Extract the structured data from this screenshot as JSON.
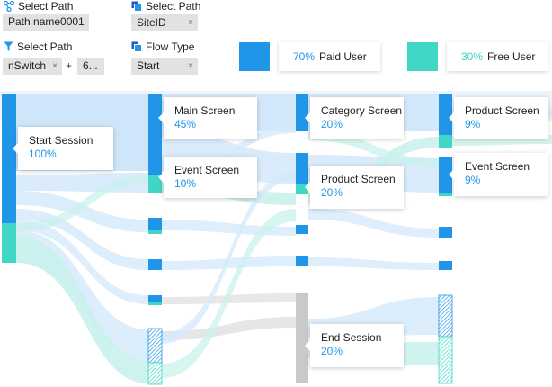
{
  "filters": {
    "path1": {
      "label": "Select Path",
      "value": "Path name0001"
    },
    "path2": {
      "label": "Select Path",
      "value": "SiteID"
    },
    "path3": {
      "label": "Select Path",
      "chips": [
        "nSwitch",
        "6..."
      ],
      "plus": "+"
    },
    "flow": {
      "label": "Flow Type",
      "value": "Start"
    },
    "remove_glyph": "×"
  },
  "legend": {
    "paid": {
      "pct": "70%",
      "label": "Paid User",
      "color": "#2196e8"
    },
    "free": {
      "pct": "30%",
      "label": "Free User",
      "color": "#3fd6c6"
    }
  },
  "nodes": {
    "start": {
      "name": "Start Session",
      "pct": "100%"
    },
    "main": {
      "name": "Main Screen",
      "pct": "45%"
    },
    "event1": {
      "name": "Event Screen",
      "pct": "10%"
    },
    "category": {
      "name": "Category Screen",
      "pct": "20%"
    },
    "product1": {
      "name": "Product Screen",
      "pct": "20%"
    },
    "end": {
      "name": "End Session",
      "pct": "20%"
    },
    "product2": {
      "name": "Product Screen",
      "pct": "9%"
    },
    "event2": {
      "name": "Event Screen",
      "pct": "9%"
    }
  }
}
